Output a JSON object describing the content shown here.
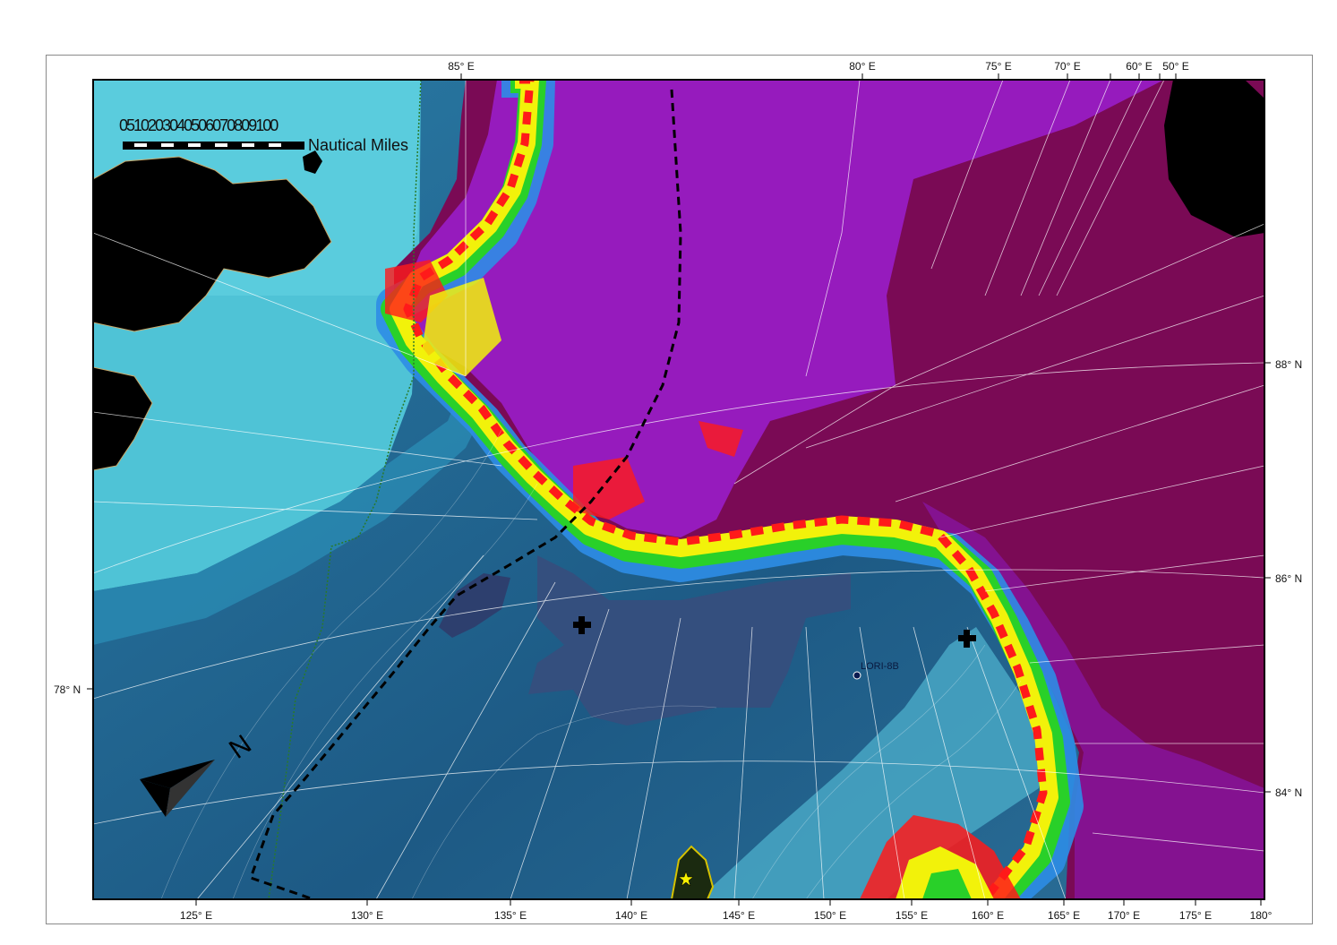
{
  "map": {
    "top_longitudes": [
      "85° E",
      "80° E",
      "75° E",
      "70° E",
      "60° E",
      "50° E"
    ],
    "bottom_longitudes": [
      "125° E",
      "130° E",
      "135° E",
      "140° E",
      "145° E",
      "150° E",
      "155° E",
      "160° E",
      "165° E",
      "170° E",
      "175° E",
      "180°"
    ],
    "right_latitudes": [
      "88° N",
      "86° N",
      "84° N"
    ],
    "left_latitudes": [
      "78° N"
    ],
    "scale_bar": {
      "numbers": "0510203040506070809100",
      "unit": "Nautical Miles"
    },
    "station_label": "LORI-8B",
    "north_arrow_label": "N",
    "colors": {
      "land": "#000000",
      "shelf": "#52c6d8",
      "deep_basin": "#1f5b88",
      "ice_interior": "#7a0a55",
      "purple": "#9b1fd0",
      "red": "#ff1a1a",
      "yellow": "#f2f20a",
      "green": "#29d029",
      "blue": "#2d8de6",
      "route": "#000000"
    }
  }
}
